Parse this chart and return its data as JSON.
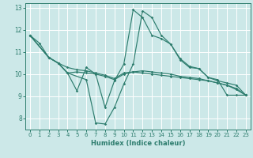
{
  "title": "",
  "xlabel": "Humidex (Indice chaleur)",
  "ylabel": "",
  "background_color": "#cce8e8",
  "grid_color": "#ffffff",
  "line_color": "#2e7d6e",
  "xlim": [
    -0.5,
    23.5
  ],
  "ylim": [
    7.5,
    13.2
  ],
  "xticks": [
    0,
    1,
    2,
    3,
    4,
    5,
    6,
    7,
    8,
    9,
    10,
    11,
    12,
    13,
    14,
    15,
    16,
    17,
    18,
    19,
    20,
    21,
    22,
    23
  ],
  "yticks": [
    8,
    9,
    10,
    11,
    12,
    13
  ],
  "series": [
    {
      "x": [
        0,
        1,
        2,
        3,
        4,
        5,
        6,
        7,
        8,
        9,
        10,
        11,
        12,
        13,
        14,
        15,
        16,
        17,
        18,
        19,
        20,
        21,
        22,
        23
      ],
      "y": [
        11.75,
        11.4,
        10.75,
        10.5,
        10.05,
        9.25,
        10.3,
        10.0,
        8.5,
        9.7,
        10.45,
        12.9,
        12.55,
        11.75,
        11.6,
        11.35,
        10.65,
        10.3,
        10.25,
        9.85,
        9.75,
        9.05,
        9.05,
        9.05
      ]
    },
    {
      "x": [
        0,
        2,
        3,
        4,
        5,
        6,
        7,
        8,
        9,
        10,
        11,
        12,
        13,
        14,
        15,
        16,
        17,
        18,
        19,
        20,
        21,
        22,
        23
      ],
      "y": [
        11.75,
        10.75,
        10.5,
        10.05,
        10.1,
        10.05,
        10.0,
        9.9,
        9.75,
        10.0,
        10.1,
        10.05,
        10.0,
        9.95,
        9.9,
        9.85,
        9.8,
        9.75,
        9.7,
        9.6,
        9.5,
        9.3,
        9.05
      ]
    },
    {
      "x": [
        0,
        2,
        3,
        4,
        5,
        6,
        7,
        8,
        9,
        10,
        11,
        12,
        13,
        14,
        15,
        16,
        17,
        18,
        19,
        20,
        21,
        22,
        23
      ],
      "y": [
        11.75,
        10.75,
        10.5,
        10.3,
        10.2,
        10.15,
        10.05,
        9.95,
        9.8,
        10.05,
        10.1,
        10.15,
        10.1,
        10.05,
        10.0,
        9.9,
        9.85,
        9.8,
        9.7,
        9.6,
        9.5,
        9.35,
        9.05
      ]
    },
    {
      "x": [
        0,
        2,
        3,
        4,
        6,
        7,
        8,
        9,
        10,
        11,
        12,
        13,
        14,
        15,
        16,
        17,
        18,
        19,
        20,
        21,
        22,
        23
      ],
      "y": [
        11.75,
        10.75,
        10.5,
        10.05,
        9.75,
        7.8,
        7.75,
        8.5,
        9.55,
        10.45,
        12.85,
        12.55,
        11.75,
        11.35,
        10.7,
        10.35,
        10.25,
        9.85,
        9.7,
        9.6,
        9.5,
        9.05
      ]
    }
  ]
}
